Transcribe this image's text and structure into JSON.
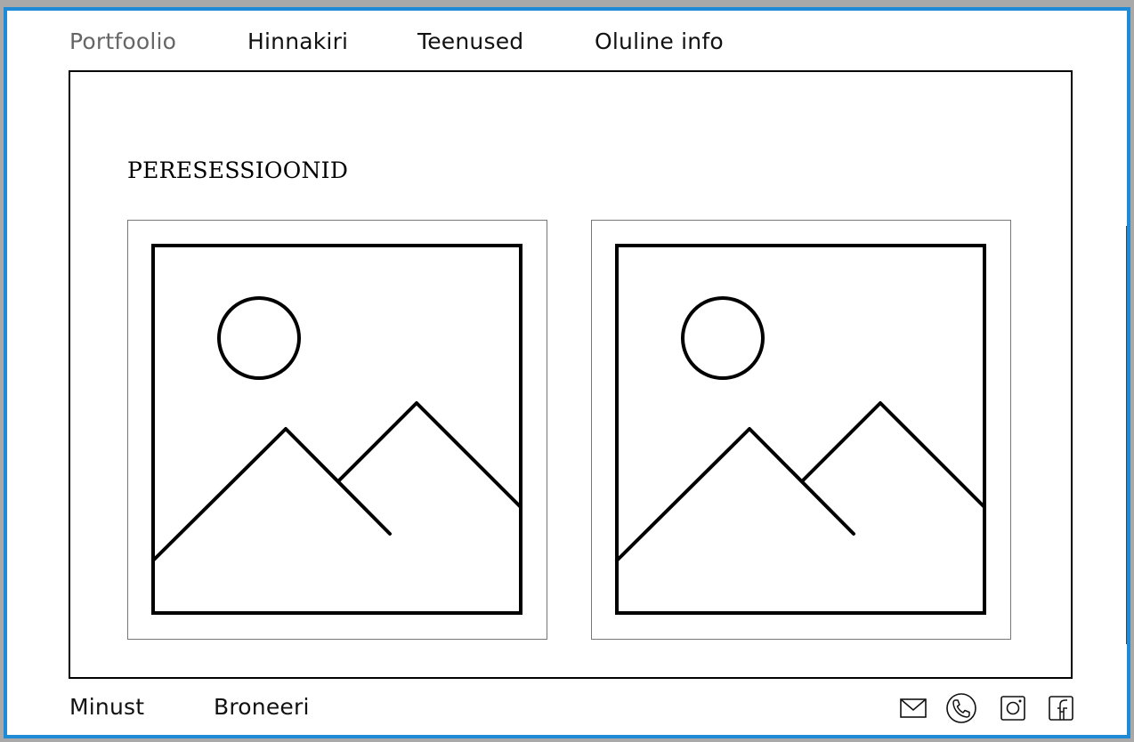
{
  "nav": {
    "items": [
      {
        "label": "Portfoolio",
        "active": true
      },
      {
        "label": "Hinnakiri",
        "active": false
      },
      {
        "label": "Teenused",
        "active": false
      },
      {
        "label": "Oluline info",
        "active": false
      }
    ]
  },
  "main": {
    "section_title": "PERESESSIOONID",
    "gallery": [
      {
        "icon": "image-placeholder-icon"
      },
      {
        "icon": "image-placeholder-icon"
      }
    ]
  },
  "footer": {
    "links": [
      "Minust",
      "Broneeri"
    ],
    "icons": [
      "mail-icon",
      "phone-icon",
      "instagram-icon",
      "facebook-icon"
    ]
  },
  "colors": {
    "window_border": "#1f8bd6",
    "active_nav": "#666666",
    "text": "#111111"
  }
}
